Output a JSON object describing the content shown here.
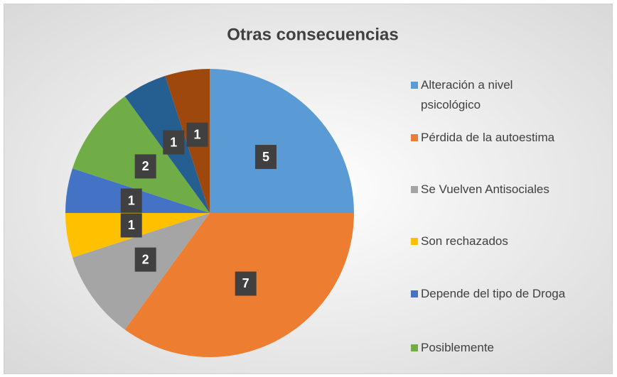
{
  "chart_data": {
    "type": "pie",
    "title": "Otras consecuencias",
    "categories": [
      "Alteración a nivel psicológico",
      "Pérdida de la autoestima",
      "Se Vuelven Antisociales",
      "Son rechazados",
      "Depende del tipo de Droga",
      "Posiblemente",
      null,
      null
    ],
    "values": [
      5,
      7,
      2,
      1,
      1,
      2,
      1,
      1
    ],
    "colors": [
      "#5B9BD5",
      "#ED7D31",
      "#A5A5A5",
      "#FFC000",
      "#4472C4",
      "#70AD47",
      "#255E91",
      "#9E480E"
    ],
    "legend": "right"
  }
}
